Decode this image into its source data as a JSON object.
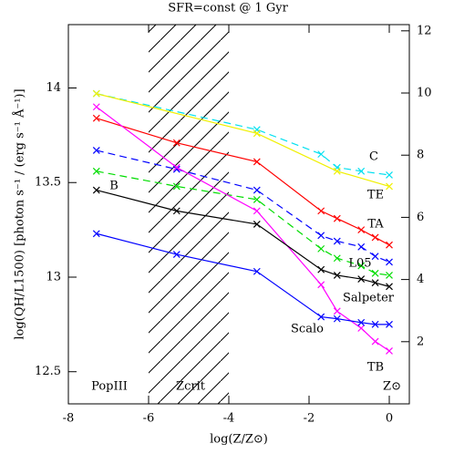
{
  "chart_data": {
    "type": "line",
    "title": "SFR=const @ 1 Gyr",
    "xlabel": "log(Z/Z⊙)",
    "ylabel": "log(QH/L1500) [photon s⁻¹ / (erg s⁻¹ Å⁻¹)]",
    "xlim": [
      -8,
      0.5
    ],
    "ylim": [
      12.33,
      14.335
    ],
    "y2lim": [
      0,
      12.2
    ],
    "xticks": [
      -8,
      -6,
      -4,
      -2,
      0
    ],
    "yticks": [
      12.5,
      13,
      13.5,
      14
    ],
    "y2ticks": [
      2,
      4,
      6,
      8,
      10,
      12
    ],
    "hatch_region": [
      -6,
      -4
    ],
    "annotations": [
      "C",
      "TE",
      "TA",
      "L05",
      "Salpeter",
      "Scalo",
      "TB",
      "B",
      "PopIII",
      "Zcrit",
      "Z⊙"
    ],
    "series": [
      {
        "color": "#00e0f0",
        "dashed": true,
        "x": [
          -7.3,
          -3.3,
          -1.7,
          -1.3,
          -0.7,
          0
        ],
        "values": [
          13.97,
          13.78,
          13.65,
          13.58,
          13.56,
          13.54
        ]
      },
      {
        "color": "#f0f000",
        "dashed": false,
        "x": [
          -7.3,
          -3.3,
          -1.3,
          0
        ],
        "values": [
          13.97,
          13.76,
          13.56,
          13.48
        ]
      },
      {
        "color": "#ff0000",
        "dashed": false,
        "x": [
          -7.3,
          -5.3,
          -3.3,
          -1.7,
          -1.3,
          -0.7,
          -0.35,
          0
        ],
        "values": [
          13.84,
          13.71,
          13.61,
          13.35,
          13.31,
          13.25,
          13.21,
          13.17
        ]
      },
      {
        "color": "#0000ff",
        "dashed": true,
        "x": [
          -7.3,
          -5.3,
          -3.3,
          -1.7,
          -1.3,
          -0.7,
          -0.35,
          0
        ],
        "values": [
          13.67,
          13.57,
          13.46,
          13.22,
          13.19,
          13.16,
          13.11,
          13.08
        ]
      },
      {
        "color": "#00dd00",
        "dashed": true,
        "x": [
          -7.3,
          -5.3,
          -3.3,
          -1.7,
          -1.3,
          -0.7,
          -0.35,
          0
        ],
        "values": [
          13.56,
          13.48,
          13.41,
          13.15,
          13.1,
          13.06,
          13.02,
          13.01
        ]
      },
      {
        "color": "#ff00ff",
        "dashed": false,
        "x": [
          -7.3,
          -5.3,
          -3.3,
          -1.7,
          -1.3,
          -0.7,
          -0.35,
          0
        ],
        "values": [
          13.9,
          13.58,
          13.35,
          12.96,
          12.82,
          12.73,
          12.66,
          12.61
        ]
      },
      {
        "color": "#000000",
        "dashed": false,
        "x": [
          -7.3,
          -5.3,
          -3.3,
          -1.7,
          -1.3,
          -0.7,
          -0.35,
          0
        ],
        "values": [
          13.46,
          13.35,
          13.28,
          13.04,
          13.01,
          12.99,
          12.97,
          12.95
        ]
      },
      {
        "color": "#0000ff",
        "dashed": false,
        "x": [
          -7.3,
          -5.3,
          -3.3,
          -1.7,
          -1.3,
          -0.7,
          -0.35,
          0
        ],
        "values": [
          13.23,
          13.12,
          13.03,
          12.79,
          12.78,
          12.76,
          12.75,
          12.75
        ]
      }
    ]
  }
}
